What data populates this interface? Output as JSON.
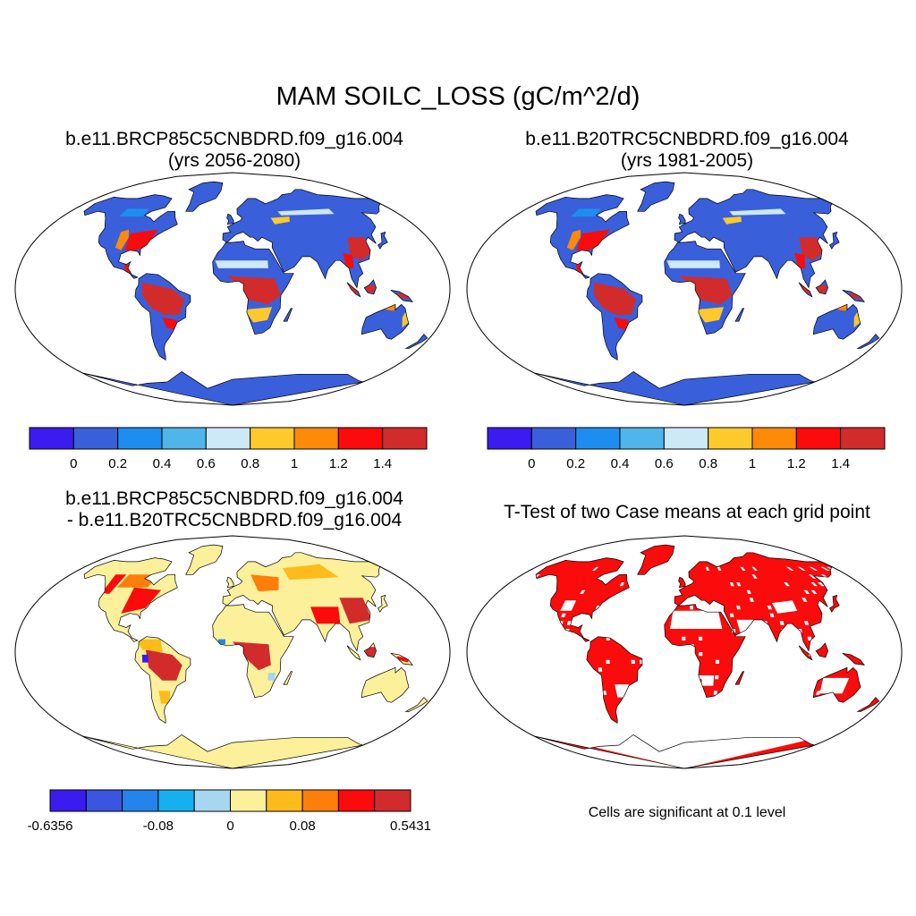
{
  "main_title": "MAM SOILC_LOSS (gC/m^2/d)",
  "panels": [
    {
      "id": "future",
      "title_line1": "b.e11.BRCP85C5CNBDRD.f09_g16.004",
      "title_line2": "(yrs 2056-2080)",
      "style": "abs",
      "colorbar": {
        "colors": [
          "#3b1bf0",
          "#3a5fdb",
          "#1e8df0",
          "#4fb5ea",
          "#cde8f7",
          "#fdc92c",
          "#fd8a08",
          "#fb0b0b",
          "#d22b2b"
        ],
        "labels": [
          "0",
          "0.2",
          "0.4",
          "0.6",
          "0.8",
          "1",
          "1.2",
          "1.4"
        ],
        "label_boundaries": [
          1,
          2,
          3,
          4,
          5,
          6,
          7,
          8
        ]
      }
    },
    {
      "id": "historical",
      "title_line1": "b.e11.B20TRC5CNBDRD.f09_g16.004",
      "title_line2": "(yrs 1981-2005)",
      "style": "abs",
      "colorbar": {
        "colors": [
          "#3b1bf0",
          "#3a5fdb",
          "#1e8df0",
          "#4fb5ea",
          "#cde8f7",
          "#fdc92c",
          "#fd8a08",
          "#fb0b0b",
          "#d22b2b"
        ],
        "labels": [
          "0",
          "0.2",
          "0.4",
          "0.6",
          "0.8",
          "1",
          "1.2",
          "1.4"
        ],
        "label_boundaries": [
          1,
          2,
          3,
          4,
          5,
          6,
          7,
          8
        ]
      }
    },
    {
      "id": "difference",
      "title_line1": "b.e11.BRCP85C5CNBDRD.f09_g16.004",
      "title_line2": "- b.e11.B20TRC5CNBDRD.f09_g16.004",
      "style": "diff",
      "colorbar": {
        "colors": [
          "#3b1bf0",
          "#3a55e0",
          "#2583ec",
          "#14b0f0",
          "#a6d6f0",
          "#fdf09a",
          "#fdbb1c",
          "#fd7e0a",
          "#fb0b0b",
          "#d22b2b"
        ],
        "labels": [
          "-0.6356",
          "-0.08",
          "0",
          "0.08",
          "0.5431"
        ],
        "label_boundaries": [
          0,
          3,
          5,
          7,
          10
        ]
      }
    },
    {
      "id": "ttest",
      "title_line1": "T-Test of two Case means at each grid point",
      "title_line2": "",
      "style": "sig",
      "note": "Cells are significant at 0.1 level"
    }
  ]
}
